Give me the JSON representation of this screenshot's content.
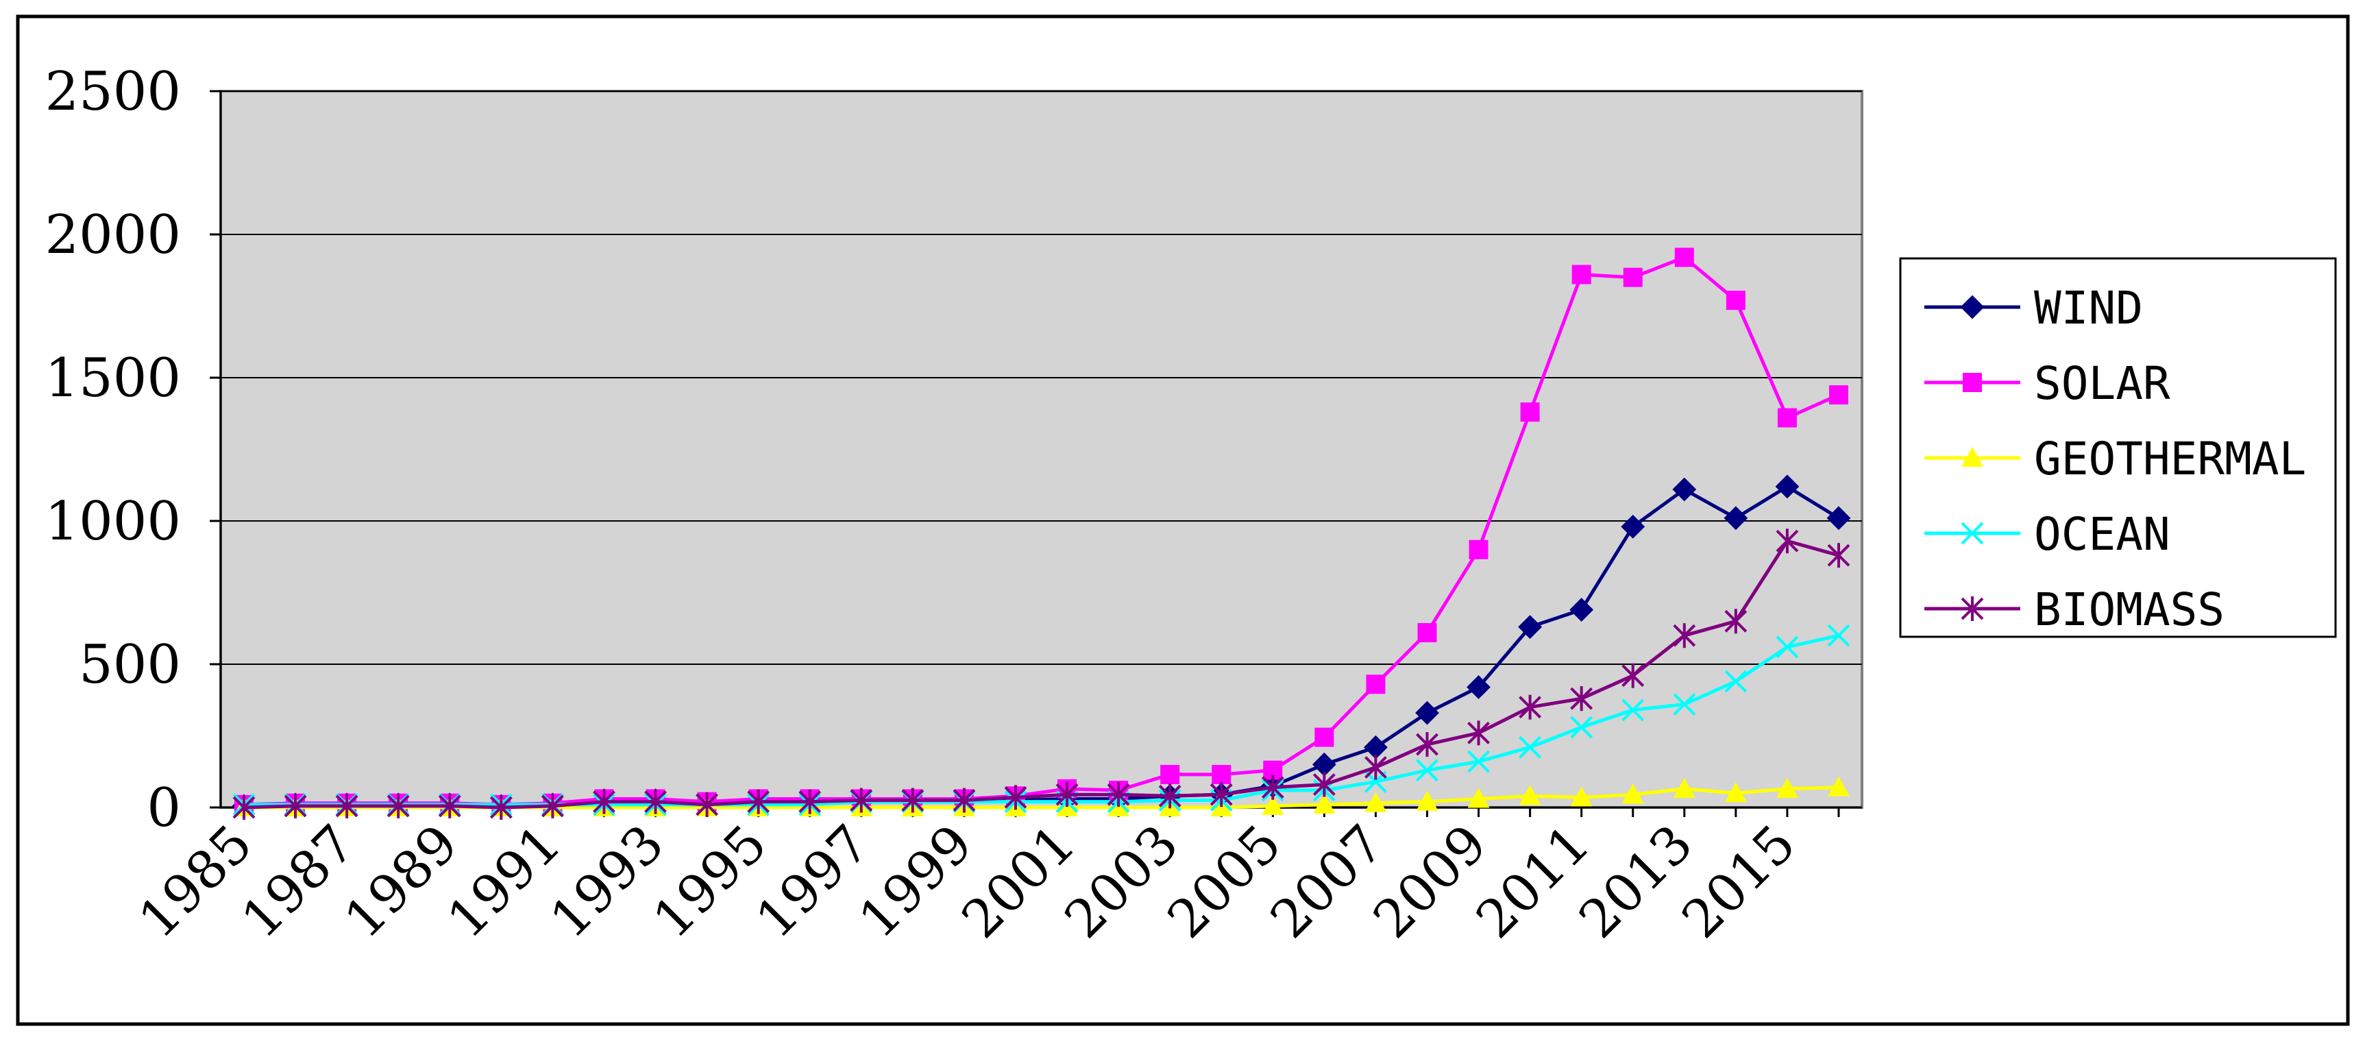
{
  "chart_data": {
    "type": "line",
    "title": "",
    "xlabel": "",
    "ylabel": "",
    "ylim": [
      0,
      2500
    ],
    "yticks": [
      "0",
      "500",
      "1000",
      "1500",
      "2000",
      "2500"
    ],
    "x": [
      1985,
      1986,
      1987,
      1988,
      1989,
      1990,
      1991,
      1992,
      1993,
      1994,
      1995,
      1996,
      1997,
      1998,
      1999,
      2000,
      2001,
      2002,
      2003,
      2004,
      2005,
      2006,
      2007,
      2008,
      2009,
      2010,
      2011,
      2012,
      2013,
      2014,
      2015,
      2016
    ],
    "xtick_labels": [
      "1985",
      "1987",
      "1989",
      "1991",
      "1993",
      "1995",
      "1997",
      "1999",
      "2001",
      "2003",
      "2005",
      "2007",
      "2009",
      "2011",
      "2013",
      "2015"
    ],
    "grid": true,
    "legend_position": "right",
    "series": [
      {
        "name": "WIND",
        "color": "#000080",
        "marker": "diamond",
        "values": [
          5,
          10,
          10,
          10,
          10,
          5,
          10,
          25,
          25,
          10,
          20,
          20,
          20,
          20,
          20,
          25,
          30,
          30,
          40,
          45,
          75,
          150,
          210,
          330,
          420,
          630,
          690,
          980,
          1110,
          1010,
          1120,
          1010
        ]
      },
      {
        "name": "SOLAR",
        "color": "#FF00FF",
        "marker": "square",
        "values": [
          10,
          15,
          15,
          15,
          15,
          10,
          15,
          30,
          30,
          20,
          30,
          30,
          30,
          30,
          30,
          40,
          65,
          60,
          115,
          115,
          130,
          245,
          430,
          610,
          900,
          1380,
          1860,
          1850,
          1920,
          1770,
          1360,
          1440
        ]
      },
      {
        "name": "GEOTHERMAL",
        "color": "#FFFF00",
        "marker": "triangle",
        "values": [
          0,
          0,
          0,
          0,
          0,
          0,
          0,
          0,
          0,
          0,
          0,
          0,
          0,
          0,
          0,
          0,
          0,
          0,
          0,
          0,
          5,
          10,
          15,
          20,
          30,
          40,
          35,
          45,
          65,
          50,
          65,
          70
        ]
      },
      {
        "name": "OCEAN",
        "color": "#00FFFF",
        "marker": "x",
        "values": [
          10,
          10,
          10,
          10,
          10,
          10,
          10,
          10,
          10,
          10,
          10,
          10,
          20,
          20,
          20,
          20,
          20,
          20,
          25,
          25,
          60,
          60,
          90,
          130,
          160,
          210,
          280,
          340,
          360,
          440,
          560,
          600
        ]
      },
      {
        "name": "BIOMASS",
        "color": "#800080",
        "marker": "star",
        "values": [
          0,
          5,
          5,
          5,
          5,
          0,
          5,
          20,
          20,
          10,
          20,
          20,
          25,
          25,
          25,
          35,
          45,
          45,
          40,
          45,
          70,
          80,
          140,
          220,
          260,
          350,
          380,
          460,
          600,
          650,
          930,
          880
        ]
      }
    ]
  }
}
